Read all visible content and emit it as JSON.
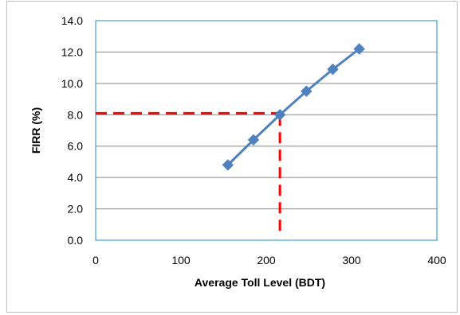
{
  "chart_data": {
    "type": "line",
    "title": "",
    "xlabel": "Average Toll Level (BDT)",
    "ylabel": "FIRR (%)",
    "xlim": [
      0,
      400
    ],
    "ylim": [
      0,
      14
    ],
    "x_ticks": [
      "0",
      "100",
      "200",
      "300",
      "400"
    ],
    "y_ticks": [
      "0.0",
      "2.0",
      "4.0",
      "6.0",
      "8.0",
      "10.0",
      "12.0",
      "14.0"
    ],
    "grid": "horizontal",
    "legend": "none",
    "series": [
      {
        "color": "#4f81bd",
        "marker": "diamond",
        "points": [
          {
            "x": 155,
            "y": 4.8
          },
          {
            "x": 185,
            "y": 6.4
          },
          {
            "x": 216,
            "y": 8.0
          },
          {
            "x": 247,
            "y": 9.5
          },
          {
            "x": 278,
            "y": 10.9
          },
          {
            "x": 309,
            "y": 12.2
          }
        ]
      }
    ],
    "reference_lines": {
      "color": "#ff0000",
      "style": "dashed",
      "horizontal": {
        "y": 8.1,
        "x_from": 0,
        "x_to": 216
      },
      "vertical": {
        "x": 216,
        "y_from": 0.5,
        "y_to": 8.0
      }
    }
  }
}
